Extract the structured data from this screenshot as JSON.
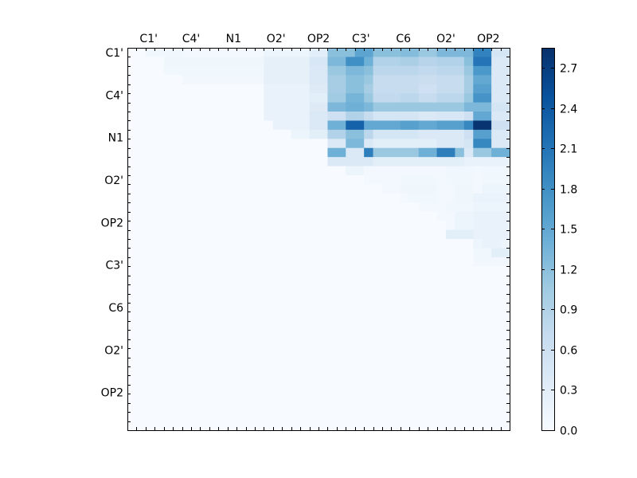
{
  "chart_data": {
    "type": "heatmap",
    "title": "",
    "xlabel": "",
    "ylabel": "",
    "tick_labels": [
      "C1'",
      "C4'",
      "N1",
      "O2'",
      "OP2",
      "C3'",
      "C6",
      "O2'",
      "OP2"
    ],
    "matrix_size": 42,
    "colormap": "Blues",
    "colorbar": {
      "range": [
        0.0,
        2.85
      ],
      "ticks": [
        "0.0",
        "0.3",
        "0.6",
        "0.9",
        "1.2",
        "1.5",
        "1.8",
        "2.1",
        "2.4",
        "2.7"
      ]
    },
    "row_segments": [
      [
        [
          2,
          6,
          0.1
        ],
        [
          6,
          15,
          0.06
        ],
        [
          15,
          20,
          0.15
        ],
        [
          20,
          22,
          0.3
        ],
        [
          22,
          25,
          1.2
        ],
        [
          25,
          27,
          1.55
        ],
        [
          27,
          30,
          1.2
        ],
        [
          30,
          32,
          1.25
        ],
        [
          32,
          34,
          1.1
        ],
        [
          34,
          37,
          1.3
        ],
        [
          37,
          38,
          1.3
        ],
        [
          38,
          40,
          1.95
        ],
        [
          40,
          42,
          0.5
        ]
      ],
      [
        [
          4,
          15,
          0.12
        ],
        [
          15,
          20,
          0.25
        ],
        [
          20,
          22,
          0.45
        ],
        [
          22,
          25,
          1.3
        ],
        [
          24,
          26,
          1.8
        ],
        [
          26,
          27,
          1.4
        ],
        [
          27,
          30,
          0.9
        ],
        [
          30,
          32,
          0.95
        ],
        [
          32,
          34,
          0.85
        ],
        [
          34,
          36,
          0.9
        ],
        [
          36,
          37,
          0.9
        ],
        [
          37,
          38,
          1.2
        ],
        [
          38,
          40,
          2.1
        ],
        [
          40,
          42,
          0.4
        ]
      ],
      [
        [
          4,
          15,
          0.1
        ],
        [
          15,
          20,
          0.25
        ],
        [
          20,
          22,
          0.4
        ],
        [
          22,
          25,
          1.1
        ],
        [
          24,
          26,
          1.3
        ],
        [
          26,
          27,
          1.2
        ],
        [
          27,
          30,
          0.8
        ],
        [
          30,
          32,
          0.8
        ],
        [
          32,
          34,
          0.75
        ],
        [
          34,
          36,
          0.8
        ],
        [
          36,
          37,
          0.8
        ],
        [
          37,
          38,
          1.1
        ],
        [
          38,
          40,
          1.7
        ],
        [
          40,
          42,
          0.4
        ]
      ],
      [
        [
          6,
          15,
          0.08
        ],
        [
          15,
          20,
          0.25
        ],
        [
          20,
          22,
          0.4
        ],
        [
          22,
          25,
          1.0
        ],
        [
          24,
          26,
          1.2
        ],
        [
          26,
          27,
          1.1
        ],
        [
          27,
          30,
          0.7
        ],
        [
          30,
          32,
          0.7
        ],
        [
          32,
          34,
          0.65
        ],
        [
          34,
          36,
          0.7
        ],
        [
          36,
          37,
          0.7
        ],
        [
          37,
          38,
          1.0
        ],
        [
          38,
          40,
          1.5
        ],
        [
          40,
          42,
          0.4
        ]
      ],
      [
        [
          15,
          20,
          0.2
        ],
        [
          20,
          22,
          0.35
        ],
        [
          22,
          25,
          1.0
        ],
        [
          24,
          26,
          1.2
        ],
        [
          26,
          27,
          1.0
        ],
        [
          27,
          30,
          0.7
        ],
        [
          30,
          32,
          0.7
        ],
        [
          32,
          34,
          0.6
        ],
        [
          34,
          36,
          0.7
        ],
        [
          36,
          37,
          0.7
        ],
        [
          37,
          38,
          1.0
        ],
        [
          38,
          40,
          1.6
        ],
        [
          40,
          42,
          0.4
        ]
      ],
      [
        [
          15,
          20,
          0.2
        ],
        [
          20,
          22,
          0.3
        ],
        [
          22,
          25,
          1.05
        ],
        [
          24,
          26,
          1.35
        ],
        [
          26,
          27,
          1.1
        ],
        [
          27,
          30,
          0.75
        ],
        [
          30,
          32,
          0.8
        ],
        [
          32,
          34,
          0.7
        ],
        [
          34,
          36,
          0.8
        ],
        [
          36,
          37,
          0.8
        ],
        [
          37,
          38,
          1.1
        ],
        [
          38,
          40,
          1.75
        ],
        [
          40,
          42,
          0.4
        ]
      ],
      [
        [
          15,
          20,
          0.2
        ],
        [
          20,
          22,
          0.35
        ],
        [
          22,
          25,
          1.3
        ],
        [
          24,
          26,
          1.4
        ],
        [
          26,
          27,
          1.3
        ],
        [
          27,
          30,
          1.1
        ],
        [
          30,
          32,
          1.1
        ],
        [
          32,
          34,
          1.1
        ],
        [
          34,
          36,
          1.1
        ],
        [
          36,
          37,
          1.1
        ],
        [
          37,
          38,
          1.3
        ],
        [
          38,
          40,
          1.3
        ],
        [
          40,
          42,
          0.5
        ]
      ],
      [
        [
          15,
          20,
          0.2
        ],
        [
          20,
          22,
          0.4
        ],
        [
          22,
          25,
          0.6
        ],
        [
          24,
          26,
          0.9
        ],
        [
          26,
          27,
          0.7
        ],
        [
          27,
          30,
          0.5
        ],
        [
          30,
          32,
          0.5
        ],
        [
          32,
          34,
          0.4
        ],
        [
          34,
          36,
          0.45
        ],
        [
          36,
          37,
          0.45
        ],
        [
          37,
          38,
          0.6
        ],
        [
          38,
          40,
          1.5
        ],
        [
          40,
          42,
          0.4
        ]
      ],
      [
        [
          16,
          20,
          0.2
        ],
        [
          20,
          22,
          0.4
        ],
        [
          22,
          25,
          1.4
        ],
        [
          24,
          26,
          2.3
        ],
        [
          26,
          27,
          1.5
        ],
        [
          27,
          30,
          1.5
        ],
        [
          30,
          32,
          1.6
        ],
        [
          32,
          34,
          1.5
        ],
        [
          34,
          36,
          1.6
        ],
        [
          36,
          37,
          1.6
        ],
        [
          37,
          38,
          1.9
        ],
        [
          38,
          40,
          2.8
        ],
        [
          40,
          42,
          0.6
        ]
      ],
      [
        [
          18,
          20,
          0.15
        ],
        [
          20,
          22,
          0.3
        ],
        [
          22,
          25,
          0.9
        ],
        [
          24,
          26,
          1.2
        ],
        [
          26,
          27,
          0.8
        ],
        [
          27,
          30,
          0.5
        ],
        [
          30,
          32,
          0.5
        ],
        [
          32,
          34,
          0.4
        ],
        [
          34,
          36,
          0.4
        ],
        [
          36,
          37,
          0.4
        ],
        [
          37,
          38,
          0.6
        ],
        [
          38,
          40,
          1.6
        ],
        [
          40,
          42,
          0.4
        ]
      ],
      [
        [
          22,
          25,
          0.4
        ],
        [
          24,
          26,
          1.3
        ],
        [
          26,
          27,
          0.4
        ],
        [
          27,
          30,
          0.3
        ],
        [
          30,
          32,
          0.3
        ],
        [
          32,
          34,
          0.3
        ],
        [
          34,
          36,
          0.4
        ],
        [
          36,
          37,
          0.4
        ],
        [
          37,
          38,
          0.5
        ],
        [
          38,
          40,
          1.9
        ],
        [
          40,
          42,
          0.4
        ]
      ],
      [
        [
          22,
          25,
          1.4
        ],
        [
          24,
          26,
          0.4
        ],
        [
          26,
          27,
          2.0
        ],
        [
          27,
          30,
          1.1
        ],
        [
          30,
          32,
          1.1
        ],
        [
          32,
          34,
          1.4
        ],
        [
          34,
          36,
          2.0
        ],
        [
          36,
          37,
          1.2
        ],
        [
          37,
          38,
          0.4
        ],
        [
          38,
          40,
          1.1
        ],
        [
          40,
          42,
          1.4
        ]
      ],
      [
        [
          22,
          25,
          0.4
        ],
        [
          24,
          26,
          0.4
        ],
        [
          26,
          27,
          0.4
        ],
        [
          27,
          30,
          0.3
        ],
        [
          30,
          32,
          0.3
        ],
        [
          32,
          34,
          0.3
        ],
        [
          34,
          36,
          0.3
        ],
        [
          36,
          37,
          0.3
        ],
        [
          37,
          38,
          0.2
        ],
        [
          38,
          40,
          0.2
        ],
        [
          40,
          42,
          0.2
        ]
      ],
      [
        [
          24,
          26,
          0.15
        ],
        [
          26,
          42,
          0.06
        ],
        [
          35,
          38,
          0.1
        ],
        [
          39,
          42,
          0.1
        ]
      ],
      [
        [
          26,
          42,
          0.06
        ],
        [
          30,
          34,
          0.1
        ],
        [
          35,
          38,
          0.1
        ],
        [
          39,
          42,
          0.1
        ]
      ],
      [
        [
          28,
          42,
          0.06
        ],
        [
          30,
          34,
          0.12
        ],
        [
          36,
          38,
          0.12
        ],
        [
          39,
          42,
          0.15
        ]
      ],
      [
        [
          30,
          42,
          0.06
        ],
        [
          31,
          34,
          0.1
        ],
        [
          36,
          38,
          0.12
        ],
        [
          38,
          42,
          0.18
        ]
      ],
      [
        [
          32,
          42,
          0.06
        ],
        [
          35,
          38,
          0.1
        ],
        [
          38,
          42,
          0.15
        ]
      ],
      [
        [
          34,
          42,
          0.06
        ],
        [
          36,
          38,
          0.15
        ],
        [
          38,
          42,
          0.2
        ]
      ],
      [
        [
          35,
          42,
          0.06
        ],
        [
          36,
          38,
          0.15
        ],
        [
          38,
          42,
          0.2
        ]
      ],
      [
        [
          35,
          38,
          0.3
        ],
        [
          38,
          42,
          0.2
        ]
      ],
      [
        [
          38,
          42,
          0.15
        ],
        [
          39,
          41,
          0.2
        ]
      ],
      [
        [
          38,
          42,
          0.1
        ],
        [
          40,
          42,
          0.3
        ]
      ],
      [
        [
          38,
          42,
          0.08
        ]
      ]
    ]
  }
}
